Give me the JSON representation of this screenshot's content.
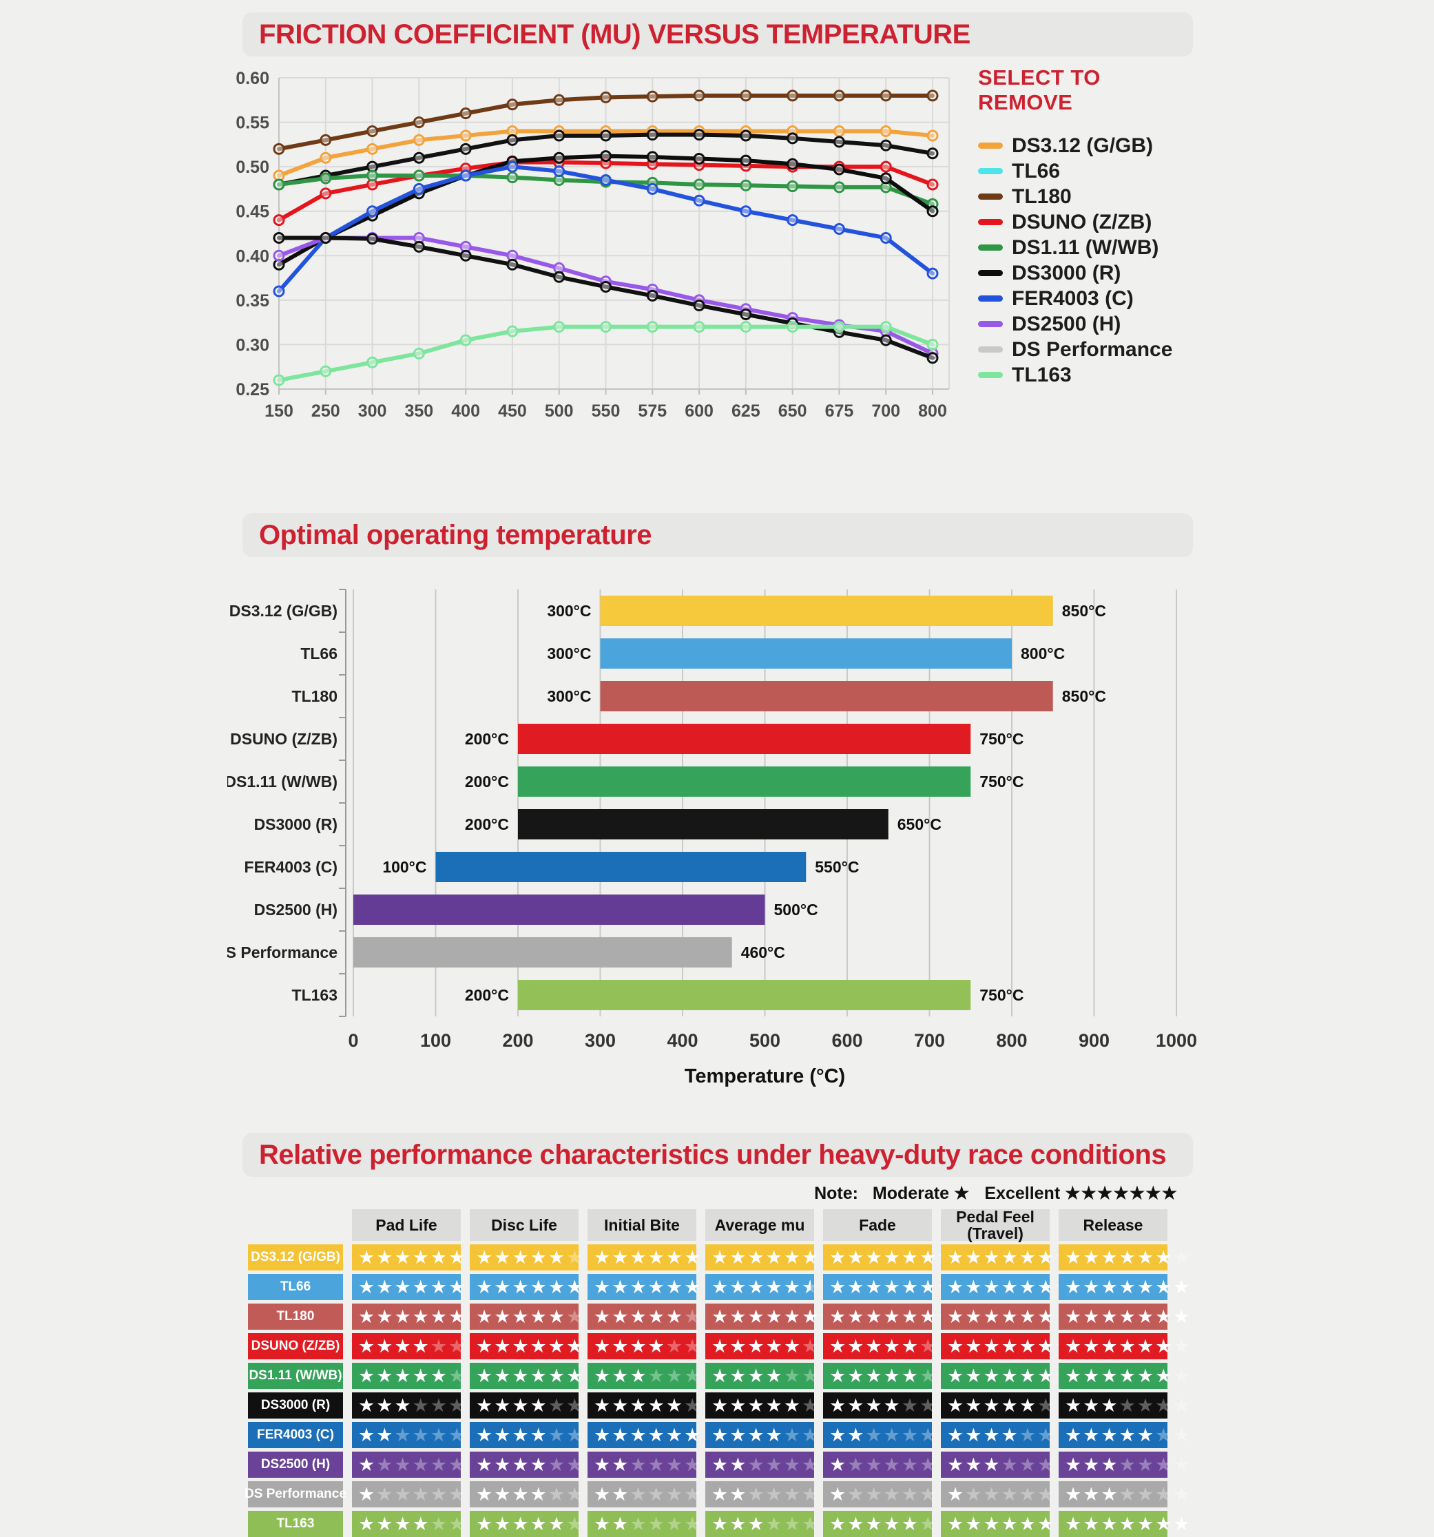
{
  "line_section": {
    "title": "FRICTION COEFFICIENT (MU) VERSUS TEMPERATURE",
    "legend_title": "SELECT TO REMOVE"
  },
  "bar_section": {
    "title": "Optimal operating temperature"
  },
  "table_section": {
    "title": "Relative performance characteristics under heavy-duty race conditions",
    "note_label": "Note:",
    "moderate_label": "Moderate",
    "excellent_label": "Excellent",
    "moderate_stars": 1,
    "excellent_stars": 7,
    "max_stars": 7,
    "headers": [
      "Pad Life",
      "Disc Life",
      "Initial Bite",
      "Average mu",
      "Fade",
      "Pedal Feel (Travel)",
      "Release"
    ],
    "rows": [
      {
        "product": "DS3.12 (G/GB)",
        "color": "#F5C436",
        "ratings": [
          6,
          5,
          6,
          6,
          7,
          7,
          6
        ]
      },
      {
        "product": "TL66",
        "color": "#4BA4DC",
        "ratings": [
          6,
          7,
          6,
          5.5,
          7,
          7,
          7
        ]
      },
      {
        "product": "TL180",
        "color": "#C05B58",
        "ratings": [
          6,
          5,
          5,
          7,
          7,
          7,
          7
        ]
      },
      {
        "product": "DSUNO (Z/ZB)",
        "color": "#E01C22",
        "ratings": [
          4,
          6,
          4,
          5,
          5,
          7,
          6
        ]
      },
      {
        "product": "DS1.11 (W/WB)",
        "color": "#36A35A",
        "ratings": [
          5,
          6,
          3,
          4,
          5,
          7,
          6
        ]
      },
      {
        "product": "DS3000 (R)",
        "color": "#101010",
        "ratings": [
          3,
          4,
          5,
          5,
          4,
          5,
          3
        ]
      },
      {
        "product": "FER4003 (C)",
        "color": "#1B6FB8",
        "ratings": [
          2,
          4,
          6,
          4,
          2,
          4,
          5
        ]
      },
      {
        "product": "DS2500 (H)",
        "color": "#6A4398",
        "ratings": [
          1,
          4,
          2,
          2,
          1,
          3,
          3
        ]
      },
      {
        "product": "DS Performance",
        "color": "#A9A9A9",
        "ratings": [
          1,
          4,
          2,
          2,
          1,
          1,
          3
        ]
      },
      {
        "product": "TL163",
        "color": "#8FBE57",
        "ratings": [
          4,
          5,
          2,
          3,
          5,
          7,
          7
        ]
      }
    ]
  },
  "chart_data": [
    {
      "type": "line",
      "title": "FRICTION COEFFICIENT (MU) VERSUS TEMPERATURE",
      "xlabel": "",
      "ylabel": "",
      "ylim": [
        0.25,
        0.6
      ],
      "ytick_step": 0.05,
      "grid": true,
      "legend_position": "right",
      "x_categories": [
        150,
        250,
        300,
        350,
        400,
        450,
        500,
        550,
        575,
        600,
        625,
        650,
        675,
        700,
        800
      ],
      "series": [
        {
          "name": "DS3.12 (G/GB)",
          "color": "#F2A33C",
          "legend_color": "#F2A33C",
          "values": [
            0.49,
            0.51,
            0.52,
            0.53,
            0.535,
            0.54,
            0.54,
            0.54,
            0.54,
            0.54,
            0.54,
            0.54,
            0.54,
            0.54,
            0.535
          ]
        },
        {
          "name": "TL66",
          "color": "#111111",
          "legend_color": "#4DE3E8",
          "values": [
            0.48,
            0.49,
            0.5,
            0.51,
            0.52,
            0.53,
            0.535,
            0.535,
            0.536,
            0.536,
            0.535,
            0.532,
            0.528,
            0.524,
            0.515
          ]
        },
        {
          "name": "TL180",
          "color": "#6E3B16",
          "legend_color": "#6E3B16",
          "values": [
            0.52,
            0.53,
            0.54,
            0.55,
            0.56,
            0.57,
            0.575,
            0.578,
            0.579,
            0.58,
            0.58,
            0.58,
            0.58,
            0.58,
            0.58
          ]
        },
        {
          "name": "DSUNO (Z/ZB)",
          "color": "#E4151C",
          "legend_color": "#E4151C",
          "values": [
            0.44,
            0.47,
            0.48,
            0.49,
            0.498,
            0.505,
            0.505,
            0.504,
            0.503,
            0.502,
            0.501,
            0.5,
            0.5,
            0.5,
            0.48
          ]
        },
        {
          "name": "DS1.11 (W/WB)",
          "color": "#2E9644",
          "legend_color": "#2E9644",
          "values": [
            0.48,
            0.487,
            0.49,
            0.49,
            0.49,
            0.488,
            0.485,
            0.483,
            0.482,
            0.48,
            0.479,
            0.478,
            0.477,
            0.477,
            0.458
          ]
        },
        {
          "name": "DS3000 (R)",
          "color": "#0d0d0d",
          "legend_color": "#0d0d0d",
          "values": [
            0.39,
            0.42,
            0.445,
            0.47,
            0.49,
            0.506,
            0.51,
            0.512,
            0.511,
            0.509,
            0.507,
            0.503,
            0.497,
            0.487,
            0.45
          ]
        },
        {
          "name": "FER4003 (C)",
          "color": "#2353DD",
          "legend_color": "#2353DD",
          "values": [
            0.36,
            0.42,
            0.45,
            0.475,
            0.49,
            0.5,
            0.495,
            0.485,
            0.475,
            0.462,
            0.45,
            0.44,
            0.43,
            0.42,
            0.38
          ]
        },
        {
          "name": "DS2500 (H)",
          "color": "#9858E8",
          "legend_color": "#9858E8",
          "values": [
            0.4,
            0.42,
            0.42,
            0.42,
            0.41,
            0.4,
            0.386,
            0.371,
            0.362,
            0.35,
            0.34,
            0.33,
            0.322,
            0.315,
            0.29
          ]
        },
        {
          "name": "DS Performance",
          "color": "#111111",
          "legend_color": "#C9C9C9",
          "values": [
            0.42,
            0.42,
            0.419,
            0.41,
            0.4,
            0.39,
            0.376,
            0.365,
            0.355,
            0.344,
            0.334,
            0.324,
            0.314,
            0.305,
            0.285
          ]
        },
        {
          "name": "TL163",
          "color": "#7DE59C",
          "legend_color": "#7DE59C",
          "values": [
            0.26,
            0.27,
            0.28,
            0.29,
            0.305,
            0.315,
            0.32,
            0.32,
            0.32,
            0.32,
            0.32,
            0.32,
            0.32,
            0.32,
            0.3
          ]
        }
      ]
    },
    {
      "type": "bar",
      "title": "Optimal operating temperature",
      "xlabel": "Temperature (°C)",
      "xlim": [
        0,
        1000
      ],
      "xtick_step": 100,
      "grid": true,
      "bars": [
        {
          "name": "DS3.12 (G/GB)",
          "color": "#F6C83C",
          "start": 300,
          "end": 850,
          "start_label": "300°C",
          "end_label": "850°C"
        },
        {
          "name": "TL66",
          "color": "#4BA4DC",
          "start": 300,
          "end": 800,
          "start_label": "300°C",
          "end_label": "800°C"
        },
        {
          "name": "TL180",
          "color": "#BE5A56",
          "start": 300,
          "end": 850,
          "start_label": "300°C",
          "end_label": "850°C"
        },
        {
          "name": "DSUNO (Z/ZB)",
          "color": "#E01C22",
          "start": 200,
          "end": 750,
          "start_label": "200°C",
          "end_label": "750°C"
        },
        {
          "name": "DS1.11 (W/WB)",
          "color": "#36A35A",
          "start": 200,
          "end": 750,
          "start_label": "200°C",
          "end_label": "750°C"
        },
        {
          "name": "DS3000 (R)",
          "color": "#161616",
          "start": 200,
          "end": 650,
          "start_label": "200°C",
          "end_label": "650°C"
        },
        {
          "name": "FER4003 (C)",
          "color": "#1B6FB8",
          "start": 100,
          "end": 550,
          "start_label": "100°C",
          "end_label": "550°C"
        },
        {
          "name": "DS2500 (H)",
          "color": "#643C96",
          "start": 0,
          "end": 500,
          "start_label": "",
          "end_label": "500°C"
        },
        {
          "name": "DS Performance",
          "color": "#ACACAC",
          "start": 0,
          "end": 460,
          "start_label": "",
          "end_label": "460°C"
        },
        {
          "name": "TL163",
          "color": "#93C157",
          "start": 200,
          "end": 750,
          "start_label": "200°C",
          "end_label": "750°C"
        }
      ]
    }
  ]
}
